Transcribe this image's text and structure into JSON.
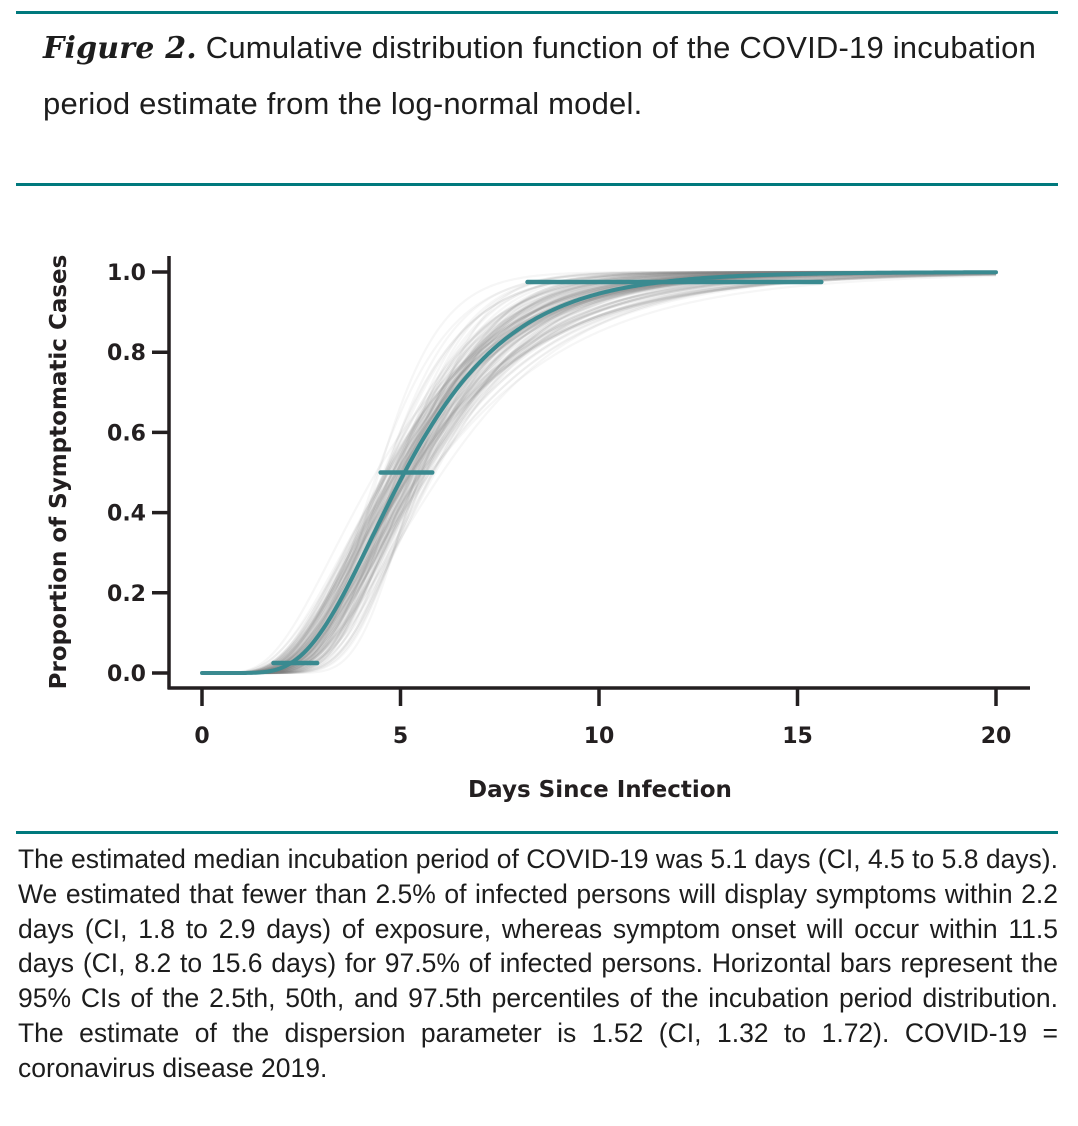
{
  "figure": {
    "label": "Figure 2.",
    "title": " Cumulative distribution function of the COVID-19 incubation period estimate from the log-normal model.",
    "caption": "The estimated median incubation period of COVID-19 was 5.1 days (CI, 4.5 to 5.8 days). We estimated that fewer than 2.5% of infected persons will display symptoms within 2.2 days (CI, 1.8 to 2.9 days) of exposure, whereas symptom onset will occur within 11.5 days (CI, 8.2 to 15.6 days) for 97.5% of infected persons. Horizontal bars represent the 95% CIs of the 2.5th, 50th, and 97.5th percentiles of the incubation period distribution. The estimate of the dispersion parameter is 1.52 (CI, 1.32 to 1.72). COVID-19 = coronavirus disease 2019.",
    "accent_color": "#00797d"
  },
  "chart_data": {
    "type": "line",
    "title": "Cumulative distribution function of the COVID-19 incubation period estimate from the log-normal model",
    "xlabel": "Days Since Infection",
    "ylabel": "Proportion of Symptomatic Cases",
    "xlim": [
      0,
      20
    ],
    "ylim": [
      0,
      1
    ],
    "x_ticks": [
      0,
      5,
      10,
      15,
      20
    ],
    "x_tick_labels": [
      "0",
      "5",
      "10",
      "15",
      "20"
    ],
    "y_ticks": [
      0,
      0.2,
      0.4,
      0.6,
      0.8,
      1.0
    ],
    "y_tick_labels": [
      "0.0",
      "0.2",
      "0.4",
      "0.6",
      "0.8",
      "1.0"
    ],
    "grid": false,
    "legend": "none",
    "main_curve": {
      "name": "Log-normal CDF (point estimate)",
      "distribution": "log-normal",
      "median_days": 5.1,
      "dispersion": 1.52,
      "color": "#3a8a90",
      "sampled_points": [
        {
          "x": 0,
          "y": 0.0
        },
        {
          "x": 1,
          "y": 0.0
        },
        {
          "x": 2,
          "y": 0.013
        },
        {
          "x": 3,
          "y": 0.103
        },
        {
          "x": 4,
          "y": 0.281
        },
        {
          "x": 5,
          "y": 0.481
        },
        {
          "x": 6,
          "y": 0.651
        },
        {
          "x": 7,
          "y": 0.775
        },
        {
          "x": 8,
          "y": 0.859
        },
        {
          "x": 10,
          "y": 0.946
        },
        {
          "x": 12,
          "y": 0.98
        },
        {
          "x": 15,
          "y": 0.995
        },
        {
          "x": 20,
          "y": 0.999
        }
      ]
    },
    "bootstrap_curves": {
      "name": "Bootstrap CDF samples",
      "color": "#808080",
      "median_range": [
        4.5,
        5.8
      ],
      "dispersion_range": [
        1.32,
        1.72
      ]
    },
    "ci_bars": [
      {
        "percentile": "2.5th",
        "y": 0.025,
        "estimate": 2.2,
        "lower": 1.8,
        "upper": 2.9
      },
      {
        "percentile": "50th",
        "y": 0.5,
        "estimate": 5.1,
        "lower": 4.5,
        "upper": 5.8
      },
      {
        "percentile": "97.5th",
        "y": 0.975,
        "estimate": 11.5,
        "lower": 8.2,
        "upper": 15.6
      }
    ]
  }
}
